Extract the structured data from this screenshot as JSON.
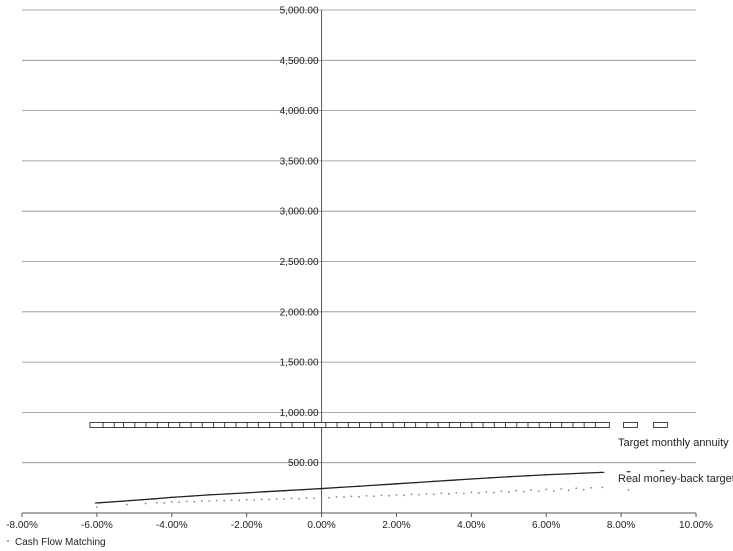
{
  "chart_data": {
    "type": "scatter",
    "title": "",
    "xlabel": "",
    "ylabel": "",
    "xlim": [
      -0.08,
      0.1
    ],
    "ylim": [
      0,
      5000
    ],
    "grid": {
      "horizontal": true,
      "vertical": false
    },
    "x_tick_labels": [
      "-8.00%",
      "-6.00%",
      "-4.00%",
      "-2.00%",
      "0.00%",
      "2.00%",
      "4.00%",
      "6.00%",
      "8.00%",
      "10.00%"
    ],
    "x_ticks": [
      -0.08,
      -0.06,
      -0.04,
      -0.02,
      0.0,
      0.02,
      0.04,
      0.06,
      0.08,
      0.1
    ],
    "y_tick_labels": [
      "500.00",
      "1,000.00",
      "1,500.00",
      "2,000.00",
      "2,500.00",
      "3,000.00",
      "3,500.00",
      "4,000.00",
      "4,500.00",
      "5,000.00"
    ],
    "y_ticks": [
      500,
      1000,
      1500,
      2000,
      2500,
      3000,
      3500,
      4000,
      4500,
      5000
    ],
    "series": [
      {
        "name": "Target monthly annuity",
        "marker": "rectangle",
        "color": "#333333",
        "y_constant": 875,
        "x": [
          -0.06,
          -0.0565,
          -0.0535,
          -0.051,
          -0.048,
          -0.045,
          -0.042,
          -0.039,
          -0.036,
          -0.033,
          -0.03,
          -0.027,
          -0.024,
          -0.021,
          -0.018,
          -0.015,
          -0.012,
          -0.009,
          -0.006,
          -0.003,
          0.0,
          0.003,
          0.006,
          0.009,
          0.012,
          0.015,
          0.018,
          0.021,
          0.024,
          0.027,
          0.03,
          0.033,
          0.036,
          0.039,
          0.042,
          0.045,
          0.048,
          0.051,
          0.054,
          0.057,
          0.06,
          0.063,
          0.066,
          0.069,
          0.072,
          0.075,
          0.0825,
          0.0905
        ]
      },
      {
        "name": "Real money-back target",
        "marker": "dash",
        "color": "#222222",
        "points": [
          [
            -0.06,
            100
          ],
          [
            -0.053,
            118
          ],
          [
            -0.048,
            132
          ],
          [
            -0.045,
            140
          ],
          [
            -0.04,
            155
          ],
          [
            -0.035,
            168
          ],
          [
            -0.03,
            180
          ],
          [
            -0.025,
            190
          ],
          [
            -0.02,
            200
          ],
          [
            -0.015,
            212
          ],
          [
            -0.01,
            222
          ],
          [
            -0.005,
            232
          ],
          [
            0.0,
            243
          ],
          [
            0.005,
            255
          ],
          [
            0.01,
            266
          ],
          [
            0.015,
            278
          ],
          [
            0.02,
            290
          ],
          [
            0.025,
            302
          ],
          [
            0.03,
            314
          ],
          [
            0.035,
            326
          ],
          [
            0.04,
            338
          ],
          [
            0.045,
            349
          ],
          [
            0.05,
            360
          ],
          [
            0.055,
            370
          ],
          [
            0.06,
            380
          ],
          [
            0.065,
            388
          ],
          [
            0.07,
            396
          ],
          [
            0.075,
            404
          ],
          [
            0.082,
            410
          ],
          [
            0.091,
            420
          ]
        ]
      },
      {
        "name": "Cash Flow Matching",
        "marker": "dot",
        "color": "#888888",
        "points": [
          [
            -0.06,
            60
          ],
          [
            -0.052,
            85
          ],
          [
            -0.047,
            95
          ],
          [
            -0.044,
            102
          ],
          [
            -0.042,
            100
          ],
          [
            -0.04,
            110
          ],
          [
            -0.038,
            108
          ],
          [
            -0.036,
            115
          ],
          [
            -0.034,
            112
          ],
          [
            -0.032,
            120
          ],
          [
            -0.03,
            118
          ],
          [
            -0.028,
            124
          ],
          [
            -0.026,
            122
          ],
          [
            -0.024,
            128
          ],
          [
            -0.022,
            126
          ],
          [
            -0.02,
            132
          ],
          [
            -0.018,
            130
          ],
          [
            -0.016,
            136
          ],
          [
            -0.014,
            134
          ],
          [
            -0.012,
            140
          ],
          [
            -0.01,
            138
          ],
          [
            -0.008,
            146
          ],
          [
            -0.006,
            142
          ],
          [
            -0.004,
            150
          ],
          [
            -0.002,
            148
          ],
          [
            0.0,
            155
          ],
          [
            0.002,
            152
          ],
          [
            0.004,
            160
          ],
          [
            0.006,
            158
          ],
          [
            0.008,
            165
          ],
          [
            0.01,
            162
          ],
          [
            0.012,
            170
          ],
          [
            0.014,
            168
          ],
          [
            0.016,
            176
          ],
          [
            0.018,
            172
          ],
          [
            0.02,
            180
          ],
          [
            0.022,
            176
          ],
          [
            0.024,
            186
          ],
          [
            0.026,
            182
          ],
          [
            0.028,
            190
          ],
          [
            0.03,
            186
          ],
          [
            0.032,
            196
          ],
          [
            0.034,
            190
          ],
          [
            0.036,
            200
          ],
          [
            0.038,
            194
          ],
          [
            0.04,
            206
          ],
          [
            0.042,
            198
          ],
          [
            0.044,
            210
          ],
          [
            0.046,
            202
          ],
          [
            0.048,
            216
          ],
          [
            0.05,
            208
          ],
          [
            0.052,
            222
          ],
          [
            0.054,
            212
          ],
          [
            0.056,
            228
          ],
          [
            0.058,
            216
          ],
          [
            0.06,
            234
          ],
          [
            0.062,
            220
          ],
          [
            0.064,
            240
          ],
          [
            0.066,
            226
          ],
          [
            0.068,
            246
          ],
          [
            0.07,
            232
          ],
          [
            0.072,
            250
          ],
          [
            0.075,
            255
          ],
          [
            0.082,
            230
          ]
        ]
      }
    ],
    "legend": {
      "placement": "bottom-left",
      "entries": [
        "Cash Flow Matching"
      ]
    },
    "annotations": [
      "Target monthly annuity",
      "Real money-back target"
    ]
  }
}
